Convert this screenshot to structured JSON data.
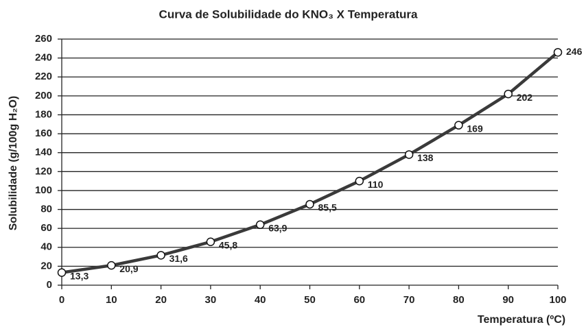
{
  "chart_data": {
    "type": "line",
    "title": "Curva de Solubilidade do KNO₃ X Temperatura",
    "x_label": "Temperatura (ºC)",
    "y_label": "Solubilidade (g/100g H₂O)",
    "x": [
      0,
      10,
      20,
      30,
      40,
      50,
      60,
      70,
      80,
      90,
      100
    ],
    "series": [
      {
        "name": "KNO₃",
        "color": "#3a3a3a",
        "values": [
          13.3,
          20.9,
          31.6,
          45.8,
          63.9,
          85.5,
          110,
          138,
          169,
          202,
          246
        ],
        "value_labels": [
          "13,3",
          "20,9",
          "31,6",
          "45,8",
          "63,9",
          "85,5",
          "110",
          "138",
          "169",
          "202",
          "246"
        ]
      }
    ],
    "xlim": [
      0,
      100
    ],
    "xticks": [
      0,
      10,
      20,
      30,
      40,
      50,
      60,
      70,
      80,
      90,
      100
    ],
    "ylim": [
      0,
      260
    ],
    "yticks": [
      0,
      20,
      40,
      60,
      80,
      100,
      120,
      140,
      160,
      180,
      200,
      220,
      240,
      260
    ],
    "grid": true
  }
}
